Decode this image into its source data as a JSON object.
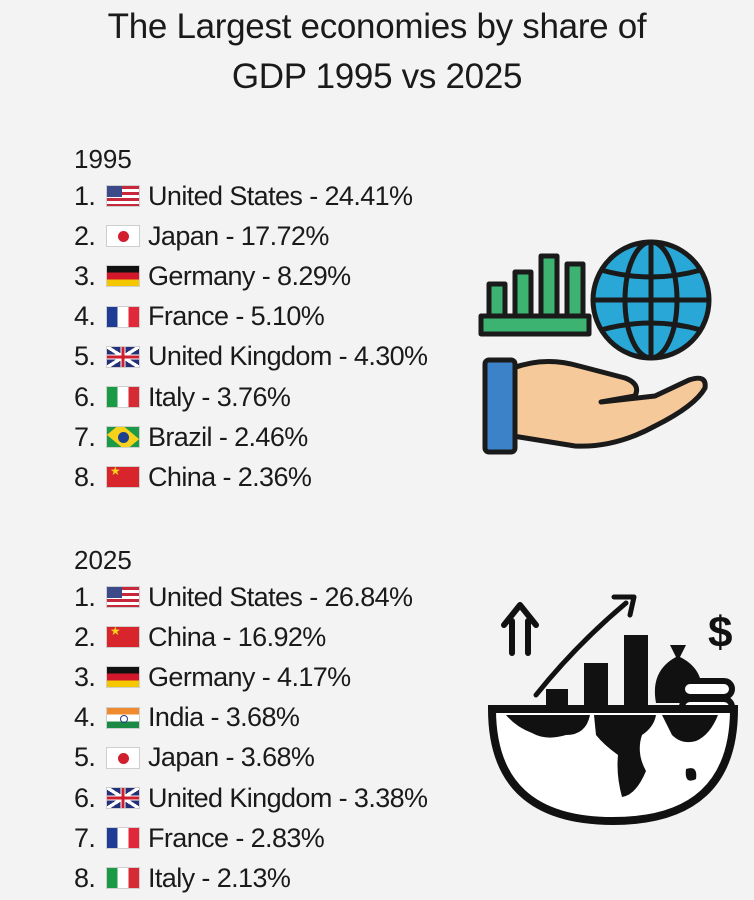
{
  "title_line1": "The Largest economies by share of",
  "title_line2": "GDP 1995 vs 2025",
  "sections": [
    {
      "year": "1995",
      "entries": [
        {
          "rank": "1.",
          "flag": "flag-us",
          "text": "United States - 24.41%"
        },
        {
          "rank": "2.",
          "flag": "flag-jp",
          "text": "Japan - 17.72%"
        },
        {
          "rank": "3.",
          "flag": "flag-de",
          "text": "Germany - 8.29%"
        },
        {
          "rank": "4.",
          "flag": "flag-fr",
          "text": "France - 5.10%"
        },
        {
          "rank": "5.",
          "flag": "flag-gb",
          "text": "United Kingdom - 4.30%"
        },
        {
          "rank": "6.",
          "flag": "flag-it",
          "text": "Italy - 3.76%"
        },
        {
          "rank": "7.",
          "flag": "flag-br",
          "text": "Brazil - 2.46%"
        },
        {
          "rank": "8.",
          "flag": "flag-cn",
          "text": "China - 2.36%"
        }
      ]
    },
    {
      "year": "2025",
      "entries": [
        {
          "rank": "1.",
          "flag": "flag-us",
          "text": "United States - 26.84%"
        },
        {
          "rank": "2.",
          "flag": "flag-cn",
          "text": "China - 16.92%"
        },
        {
          "rank": "3.",
          "flag": "flag-de",
          "text": "Germany - 4.17%"
        },
        {
          "rank": "4.",
          "flag": "flag-in",
          "text": "India - 3.68%"
        },
        {
          "rank": "5.",
          "flag": "flag-jp",
          "text": "Japan - 3.68%"
        },
        {
          "rank": "6.",
          "flag": "flag-gb",
          "text": "United Kingdom - 3.38%"
        },
        {
          "rank": "7.",
          "flag": "flag-fr",
          "text": "France - 2.83%"
        },
        {
          "rank": "8.",
          "flag": "flag-it",
          "text": "Italy - 2.13%"
        }
      ]
    }
  ],
  "icons": {
    "economy": "hand-holding-globe-and-chart-icon",
    "growth": "globe-with-growth-chart-and-money-icon"
  },
  "colors": {
    "background": "#f3f3f3",
    "text": "#1a1a1a",
    "chart_green": "#3cb371",
    "globe_blue": "#29a8d8",
    "hand_skin": "#f6c99b",
    "sleeve_blue": "#3b82c8"
  },
  "dollar_sign": "$"
}
